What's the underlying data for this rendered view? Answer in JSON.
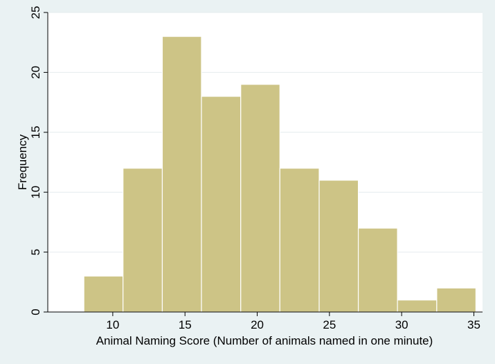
{
  "chart_data": {
    "type": "bar",
    "subtype": "histogram",
    "bins": [
      {
        "start": 8.0,
        "end": 10.71,
        "value": 3
      },
      {
        "start": 10.71,
        "end": 13.43,
        "value": 12
      },
      {
        "start": 13.43,
        "end": 16.14,
        "value": 23
      },
      {
        "start": 16.14,
        "end": 18.86,
        "value": 18
      },
      {
        "start": 18.86,
        "end": 21.57,
        "value": 19
      },
      {
        "start": 21.57,
        "end": 24.29,
        "value": 12
      },
      {
        "start": 24.29,
        "end": 27.0,
        "value": 11
      },
      {
        "start": 27.0,
        "end": 29.71,
        "value": 7
      },
      {
        "start": 29.71,
        "end": 32.43,
        "value": 1
      },
      {
        "start": 32.43,
        "end": 35.14,
        "value": 2
      }
    ],
    "xlabel": "Animal Naming Score (Number of animals named in one minute)",
    "ylabel": "Frequency",
    "xlim": [
      5.5,
      35.6
    ],
    "ylim": [
      0,
      25
    ],
    "xticks": [
      "10",
      "15",
      "20",
      "25",
      "30",
      "35"
    ],
    "yticks": [
      "0",
      "5",
      "10",
      "15",
      "20",
      "25"
    ],
    "grid": "horizontal",
    "legend": "none"
  },
  "colors": {
    "page_background": "#eaf2f3",
    "plot_background": "#ffffff",
    "bar_fill": "#cdc486",
    "bar_edge": "#ffffff",
    "grid": "#e4ecee",
    "axis": "#000000"
  }
}
